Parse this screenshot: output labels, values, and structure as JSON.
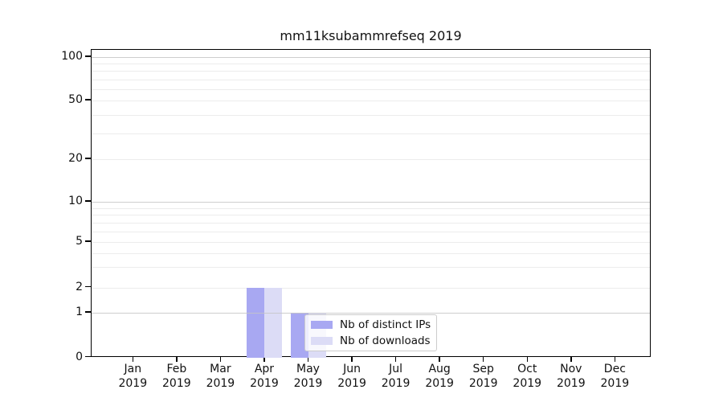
{
  "chart_data": {
    "type": "bar",
    "title": "mm11ksubammrefseq 2019",
    "x_categories": [
      "Jan",
      "Feb",
      "Mar",
      "Apr",
      "May",
      "Jun",
      "Jul",
      "Aug",
      "Sep",
      "Oct",
      "Nov",
      "Dec"
    ],
    "x_year": "2019",
    "y_scale": "symlog",
    "y_tick_labels": [
      0,
      1,
      2,
      5,
      10,
      20,
      50,
      100
    ],
    "y_major_grid_values": [
      1,
      10,
      100
    ],
    "y_minor_grid_values": [
      2,
      3,
      4,
      5,
      6,
      7,
      8,
      9,
      20,
      30,
      40,
      50,
      60,
      70,
      80,
      90
    ],
    "ylim": [
      0,
      112
    ],
    "grid": "on",
    "legend_position": "inside-bottom-center",
    "series": [
      {
        "name": "Nb of distinct IPs",
        "color": "#a8a8f2",
        "values": [
          0,
          0,
          0,
          2,
          1,
          0,
          0,
          0,
          0,
          0,
          0,
          0
        ]
      },
      {
        "name": "Nb of downloads",
        "color": "#dcdcf6",
        "values": [
          0,
          0,
          0,
          2,
          1,
          0,
          0,
          0,
          0,
          0,
          0,
          0
        ]
      }
    ]
  }
}
